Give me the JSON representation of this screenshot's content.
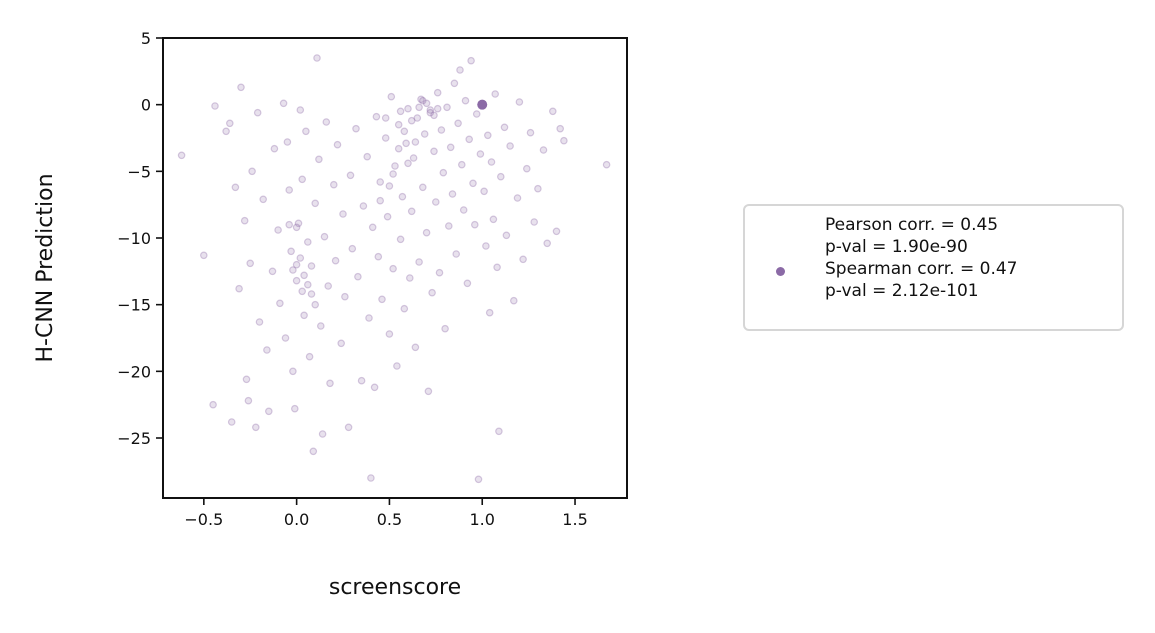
{
  "chart_data": {
    "type": "scatter",
    "title": "",
    "xlabel": "screenscore",
    "ylabel": "H-CNN Prediction",
    "xlim": [
      -0.72,
      1.78
    ],
    "ylim": [
      -29.5,
      5
    ],
    "xticks": [
      -0.5,
      0.0,
      0.5,
      1.0,
      1.5
    ],
    "xtick_labels": [
      "−0.5",
      "0.0",
      "0.5",
      "1.0",
      "1.5"
    ],
    "yticks": [
      5,
      0,
      -5,
      -10,
      -15,
      -20,
      -25
    ],
    "ytick_labels": [
      "5",
      "0",
      "−5",
      "−10",
      "−15",
      "−20",
      "−25"
    ],
    "grid": false,
    "point_color": "#8b6aa6",
    "point_alpha": 0.2,
    "highlight_point": {
      "x": 1.0,
      "y": 0.0
    },
    "legend": {
      "placement": "right, outside plot",
      "lines": [
        "Pearson corr. = 0.45",
        "p-val = 1.90e-90",
        "Spearman corr. = 0.47",
        "p-val = 2.12e-101"
      ]
    },
    "points": [
      [
        -0.62,
        -3.8
      ],
      [
        -0.5,
        -11.3
      ],
      [
        -0.45,
        -22.5
      ],
      [
        -0.44,
        -0.1
      ],
      [
        -0.38,
        -2.0
      ],
      [
        -0.36,
        -1.4
      ],
      [
        -0.35,
        -23.8
      ],
      [
        -0.33,
        -6.2
      ],
      [
        -0.31,
        -13.8
      ],
      [
        -0.3,
        1.3
      ],
      [
        -0.28,
        -8.7
      ],
      [
        -0.27,
        -20.6
      ],
      [
        -0.26,
        -22.2
      ],
      [
        -0.25,
        -11.9
      ],
      [
        -0.24,
        -5.0
      ],
      [
        -0.22,
        -24.2
      ],
      [
        -0.21,
        -0.6
      ],
      [
        -0.2,
        -16.3
      ],
      [
        -0.18,
        -7.1
      ],
      [
        -0.16,
        -18.4
      ],
      [
        -0.15,
        -23.0
      ],
      [
        -0.13,
        -12.5
      ],
      [
        -0.12,
        -3.3
      ],
      [
        -0.1,
        -9.4
      ],
      [
        -0.09,
        -14.9
      ],
      [
        -0.07,
        0.1
      ],
      [
        -0.06,
        -17.5
      ],
      [
        -0.05,
        -2.8
      ],
      [
        -0.04,
        -6.4
      ],
      [
        -0.03,
        -11.0
      ],
      [
        -0.02,
        -20.0
      ],
      [
        -0.01,
        -22.8
      ],
      [
        0.0,
        -13.2
      ],
      [
        0.01,
        -8.9
      ],
      [
        0.02,
        -0.4
      ],
      [
        0.03,
        -5.6
      ],
      [
        0.04,
        -15.8
      ],
      [
        0.05,
        -2.0
      ],
      [
        0.06,
        -10.3
      ],
      [
        0.07,
        -18.9
      ],
      [
        0.08,
        -12.1
      ],
      [
        0.09,
        -26.0
      ],
      [
        0.1,
        -7.4
      ],
      [
        0.11,
        3.5
      ],
      [
        0.12,
        -4.1
      ],
      [
        0.13,
        -16.6
      ],
      [
        0.14,
        -24.7
      ],
      [
        0.15,
        -9.9
      ],
      [
        0.16,
        -1.3
      ],
      [
        0.17,
        -13.6
      ],
      [
        0.18,
        -20.9
      ],
      [
        0.2,
        -6.0
      ],
      [
        0.21,
        -11.7
      ],
      [
        0.22,
        -3.0
      ],
      [
        0.24,
        -17.9
      ],
      [
        0.25,
        -8.2
      ],
      [
        0.26,
        -14.4
      ],
      [
        0.28,
        -24.2
      ],
      [
        0.29,
        -5.3
      ],
      [
        0.3,
        -10.8
      ],
      [
        0.32,
        -1.8
      ],
      [
        0.33,
        -12.9
      ],
      [
        0.35,
        -20.7
      ],
      [
        0.36,
        -7.6
      ],
      [
        0.38,
        -3.9
      ],
      [
        0.39,
        -16.0
      ],
      [
        0.4,
        -28.0
      ],
      [
        0.41,
        -9.2
      ],
      [
        0.42,
        -21.2
      ],
      [
        0.43,
        -0.9
      ],
      [
        0.44,
        -11.4
      ],
      [
        0.45,
        -5.8
      ],
      [
        0.46,
        -14.6
      ],
      [
        0.48,
        -2.5
      ],
      [
        0.49,
        -8.4
      ],
      [
        0.5,
        -17.2
      ],
      [
        0.51,
        0.6
      ],
      [
        0.52,
        -12.3
      ],
      [
        0.53,
        -4.6
      ],
      [
        0.54,
        -19.6
      ],
      [
        0.55,
        -1.5
      ],
      [
        0.56,
        -10.1
      ],
      [
        0.57,
        -6.9
      ],
      [
        0.58,
        -15.3
      ],
      [
        0.59,
        -2.9
      ],
      [
        0.6,
        -0.3
      ],
      [
        0.61,
        -13.0
      ],
      [
        0.62,
        -8.0
      ],
      [
        0.63,
        -4.0
      ],
      [
        0.64,
        -18.2
      ],
      [
        0.65,
        -1.0
      ],
      [
        0.66,
        -11.8
      ],
      [
        0.67,
        0.4
      ],
      [
        0.68,
        -6.2
      ],
      [
        0.69,
        -2.2
      ],
      [
        0.7,
        -9.6
      ],
      [
        0.71,
        -21.5
      ],
      [
        0.72,
        -0.6
      ],
      [
        0.73,
        -14.1
      ],
      [
        0.74,
        -3.5
      ],
      [
        0.75,
        -7.3
      ],
      [
        0.76,
        0.9
      ],
      [
        0.77,
        -12.6
      ],
      [
        0.78,
        -1.9
      ],
      [
        0.79,
        -5.1
      ],
      [
        0.8,
        -16.8
      ],
      [
        0.81,
        -0.2
      ],
      [
        0.82,
        -9.1
      ],
      [
        0.83,
        -3.2
      ],
      [
        0.84,
        -6.7
      ],
      [
        0.85,
        1.6
      ],
      [
        0.86,
        -11.2
      ],
      [
        0.87,
        -1.4
      ],
      [
        0.88,
        2.6
      ],
      [
        0.89,
        -4.5
      ],
      [
        0.9,
        -7.9
      ],
      [
        0.91,
        0.3
      ],
      [
        0.92,
        -13.4
      ],
      [
        0.93,
        -2.6
      ],
      [
        0.94,
        3.3
      ],
      [
        0.95,
        -5.9
      ],
      [
        0.96,
        -9.0
      ],
      [
        0.97,
        -0.7
      ],
      [
        0.98,
        -28.1
      ],
      [
        0.99,
        -3.7
      ],
      [
        1.0,
        0.0
      ],
      [
        1.01,
        -6.5
      ],
      [
        1.02,
        -10.6
      ],
      [
        1.03,
        -2.3
      ],
      [
        1.04,
        -15.6
      ],
      [
        1.05,
        -4.3
      ],
      [
        1.06,
        -8.6
      ],
      [
        1.07,
        0.8
      ],
      [
        1.08,
        -12.2
      ],
      [
        1.09,
        -24.5
      ],
      [
        1.1,
        -5.4
      ],
      [
        1.12,
        -1.7
      ],
      [
        1.13,
        -9.8
      ],
      [
        1.15,
        -3.1
      ],
      [
        1.17,
        -14.7
      ],
      [
        1.19,
        -7.0
      ],
      [
        1.2,
        0.2
      ],
      [
        1.22,
        -11.6
      ],
      [
        1.24,
        -4.8
      ],
      [
        1.26,
        -2.1
      ],
      [
        1.28,
        -8.8
      ],
      [
        1.3,
        -6.3
      ],
      [
        1.33,
        -3.4
      ],
      [
        1.35,
        -10.4
      ],
      [
        1.38,
        -0.5
      ],
      [
        1.4,
        -9.5
      ],
      [
        1.42,
        -1.8
      ],
      [
        1.44,
        -2.7
      ],
      [
        1.67,
        -4.5
      ],
      [
        0.7,
        0.1
      ],
      [
        0.72,
        -0.4
      ],
      [
        0.68,
        0.3
      ],
      [
        0.74,
        -0.8
      ],
      [
        0.66,
        -0.2
      ],
      [
        0.76,
        -0.3
      ],
      [
        0.0,
        -12.0
      ],
      [
        0.02,
        -11.5
      ],
      [
        -0.02,
        -12.4
      ],
      [
        0.04,
        -12.8
      ],
      [
        0.0,
        -9.2
      ],
      [
        -0.04,
        -9.0
      ],
      [
        0.06,
        -13.5
      ],
      [
        0.08,
        -14.2
      ],
      [
        0.1,
        -15.0
      ],
      [
        0.03,
        -14.0
      ],
      [
        0.58,
        -2.0
      ],
      [
        0.62,
        -1.2
      ],
      [
        0.55,
        -3.3
      ],
      [
        0.6,
        -4.4
      ],
      [
        0.52,
        -5.2
      ],
      [
        0.5,
        -6.1
      ],
      [
        0.45,
        -7.2
      ],
      [
        0.48,
        -1.0
      ],
      [
        0.64,
        -2.8
      ],
      [
        0.56,
        -0.5
      ]
    ]
  }
}
